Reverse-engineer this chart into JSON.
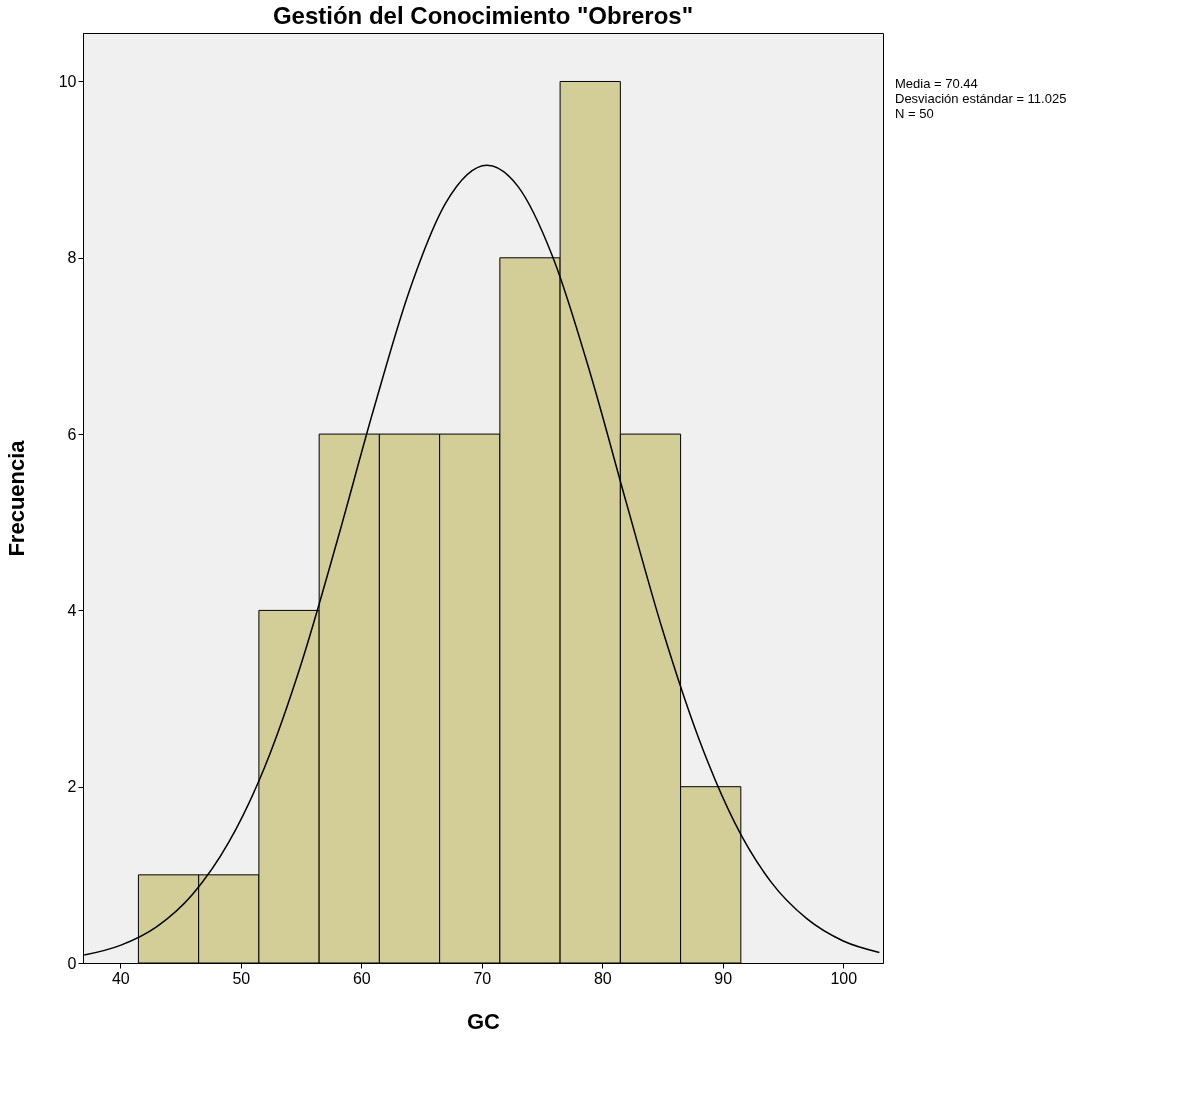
{
  "chart_data": {
    "type": "histogram",
    "title": "Gestión del  Conocimiento \"Obreros\"",
    "xlabel": "GC",
    "ylabel": "Frecuencia",
    "bins": [
      41.5,
      46.5,
      51.5,
      56.5,
      61.5,
      66.5,
      71.5,
      76.5,
      81.5,
      86.5,
      91.5
    ],
    "values": [
      1,
      1,
      4,
      6,
      6,
      6,
      8,
      10,
      6,
      2
    ],
    "color": "#d3ce97",
    "series": [
      {
        "type": "line",
        "color": "#000000",
        "marker": "none",
        "x": [
          37,
          40,
          43,
          46,
          49,
          52,
          55,
          58,
          61,
          64,
          67,
          70.44,
          73,
          76,
          79,
          82,
          85,
          88,
          91,
          94,
          97,
          100,
          103
        ],
        "values": [
          0.09,
          0.2,
          0.41,
          0.78,
          1.37,
          2.23,
          3.39,
          4.79,
          6.27,
          7.63,
          8.62,
          9.05,
          8.81,
          7.97,
          6.69,
          5.22,
          3.78,
          2.55,
          1.59,
          0.92,
          0.5,
          0.25,
          0.12
        ]
      }
    ],
    "xlim": [
      36.9,
      103.3
    ],
    "xticks": [
      40,
      50,
      60,
      70,
      80,
      90,
      100
    ],
    "ylim": [
      0,
      10.55
    ],
    "yticks": [
      0,
      2,
      4,
      6,
      8,
      10
    ],
    "grid": false,
    "annotations": [
      "Media = 70.44",
      "Desviación estándar = 11.025",
      "N = 50"
    ]
  }
}
